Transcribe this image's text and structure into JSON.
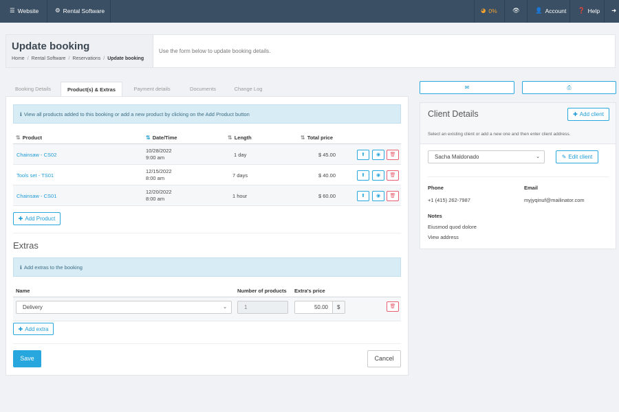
{
  "topnav": {
    "website": "Website",
    "rental_software": "Rental Software",
    "progress": "0%",
    "account": "Account",
    "help": "Help"
  },
  "header": {
    "title": "Update booking",
    "breadcrumb": [
      "Home",
      "Rental Software",
      "Reservations",
      "Update booking"
    ],
    "description": "Use the form below to update booking details."
  },
  "tabs": [
    "Booking Details",
    "Product(s) & Extras",
    "Payment details",
    "Documents",
    "Change Log"
  ],
  "products": {
    "info": "View all products added to this booking or add a new product by clicking on the Add Product button",
    "columns": [
      "Product",
      "Date/Time",
      "Length",
      "Total price"
    ],
    "rows": [
      {
        "product": "Chainsaw - CS02",
        "date": "10/28/2022",
        "time": "9:00 am",
        "length": "1 day",
        "price": "$ 45.00"
      },
      {
        "product": "Tools set - TS01",
        "date": "12/15/2022",
        "time": "8:00 am",
        "length": "7 days",
        "price": "$ 40.00"
      },
      {
        "product": "Chainsaw - CS01",
        "date": "12/20/2022",
        "time": "8:00 am",
        "length": "1 hour",
        "price": "$ 60.00"
      }
    ],
    "add_label": "Add Product"
  },
  "extras": {
    "title": "Extras",
    "info": "Add extras to the booking",
    "columns": [
      "Name",
      "Number of products",
      "Extra's price"
    ],
    "row": {
      "name": "Delivery",
      "number": "1",
      "price": "50.00",
      "currency": "$"
    },
    "add_label": "Add extra"
  },
  "actions": {
    "save": "Save",
    "cancel": "Cancel"
  },
  "client": {
    "title": "Client Details",
    "add_client": "Add client",
    "subtitle": "Select an existing client or add a new one and then enter client address.",
    "selected": "Sacha Maldonado",
    "edit_client": "Edit client",
    "phone_label": "Phone",
    "phone": "+1 (415) 262-7987",
    "email_label": "Email",
    "email": "myjyqinuf@mailinator.com",
    "notes_label": "Notes",
    "notes": "Eiusmod quod dolore",
    "view_address": "View address"
  },
  "colors": {
    "nav": "#3a4f63",
    "accent": "#27a7dd",
    "danger": "#e85f72",
    "info_bg": "#d7ecf5",
    "progress": "#f0a030"
  }
}
